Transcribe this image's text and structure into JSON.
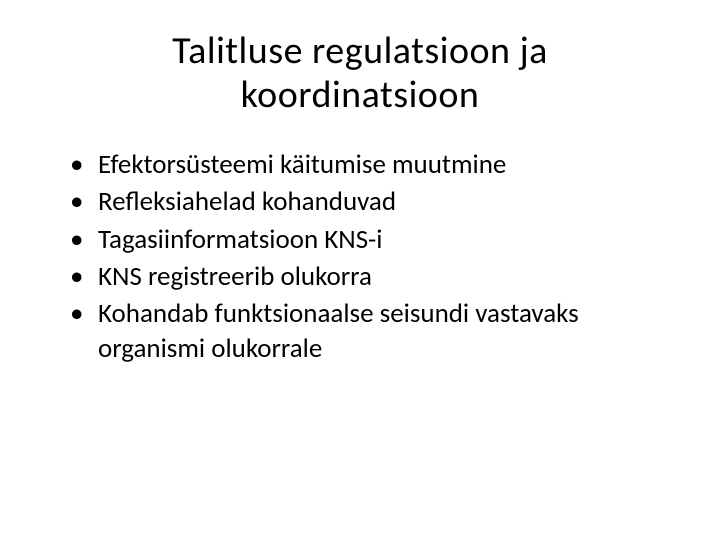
{
  "slide": {
    "title_line1": "Talitluse  regulatsioon ja",
    "title_line2": "koordinatsioon",
    "bullets": [
      "Efektorsüsteemi käitumise muutmine",
      "Refleksiahelad kohanduvad",
      "Tagasiinformatsioon KNS-i",
      "KNS registreerib olukorra",
      "Kohandab funktsionaalse seisundi vastavaks organismi olukorrale"
    ],
    "background_color": "#ffffff",
    "text_color": "#000000",
    "title_fontsize": 38,
    "body_fontsize": 27
  }
}
